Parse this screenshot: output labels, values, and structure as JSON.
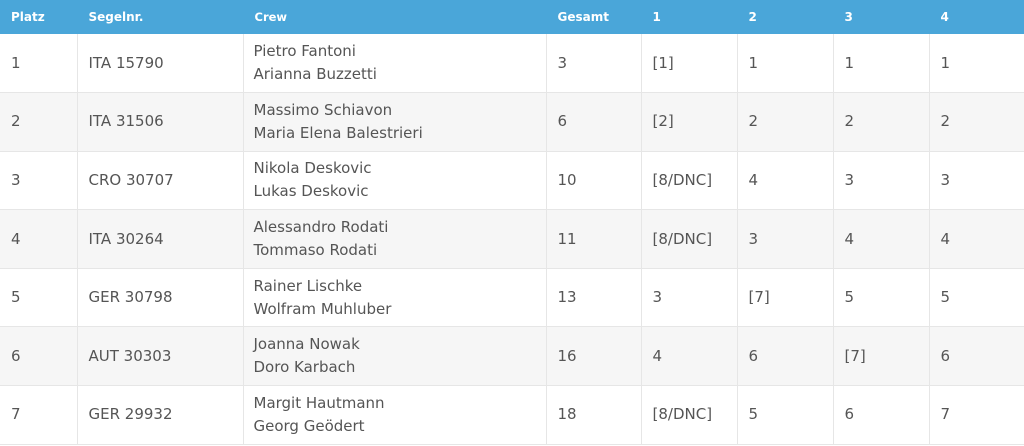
{
  "columns": {
    "platz": "Platz",
    "segelnr": "Segelnr.",
    "crew": "Crew",
    "gesamt": "Gesamt",
    "r1": "1",
    "r2": "2",
    "r3": "3",
    "r4": "4"
  },
  "rows": [
    {
      "platz": "1",
      "segelnr": "ITA 15790",
      "crew": [
        "Pietro Fantoni",
        "Arianna Buzzetti"
      ],
      "gesamt": "3",
      "r1": "[1]",
      "r2": "1",
      "r3": "1",
      "r4": "1"
    },
    {
      "platz": "2",
      "segelnr": "ITA 31506",
      "crew": [
        "Massimo Schiavon",
        "Maria Elena Balestrieri"
      ],
      "gesamt": "6",
      "r1": "[2]",
      "r2": "2",
      "r3": "2",
      "r4": "2"
    },
    {
      "platz": "3",
      "segelnr": "CRO 30707",
      "crew": [
        "Nikola Deskovic",
        "Lukas Deskovic"
      ],
      "gesamt": "10",
      "r1": "[8/DNC]",
      "r2": "4",
      "r3": "3",
      "r4": "3"
    },
    {
      "platz": "4",
      "segelnr": "ITA 30264",
      "crew": [
        "Alessandro Rodati",
        "Tommaso Rodati"
      ],
      "gesamt": "11",
      "r1": "[8/DNC]",
      "r2": "3",
      "r3": "4",
      "r4": "4"
    },
    {
      "platz": "5",
      "segelnr": "GER 30798",
      "crew": [
        "Rainer Lischke",
        "Wolfram Muhluber"
      ],
      "gesamt": "13",
      "r1": "3",
      "r2": "[7]",
      "r3": "5",
      "r4": "5"
    },
    {
      "platz": "6",
      "segelnr": "AUT 30303",
      "crew": [
        "Joanna Nowak",
        "Doro Karbach"
      ],
      "gesamt": "16",
      "r1": "4",
      "r2": "6",
      "r3": "[7]",
      "r4": "6"
    },
    {
      "platz": "7",
      "segelnr": "GER 29932",
      "crew": [
        "Margit Hautmann",
        "Georg Geödert"
      ],
      "gesamt": "18",
      "r1": "[8/DNC]",
      "r2": "5",
      "r3": "6",
      "r4": "7"
    }
  ]
}
